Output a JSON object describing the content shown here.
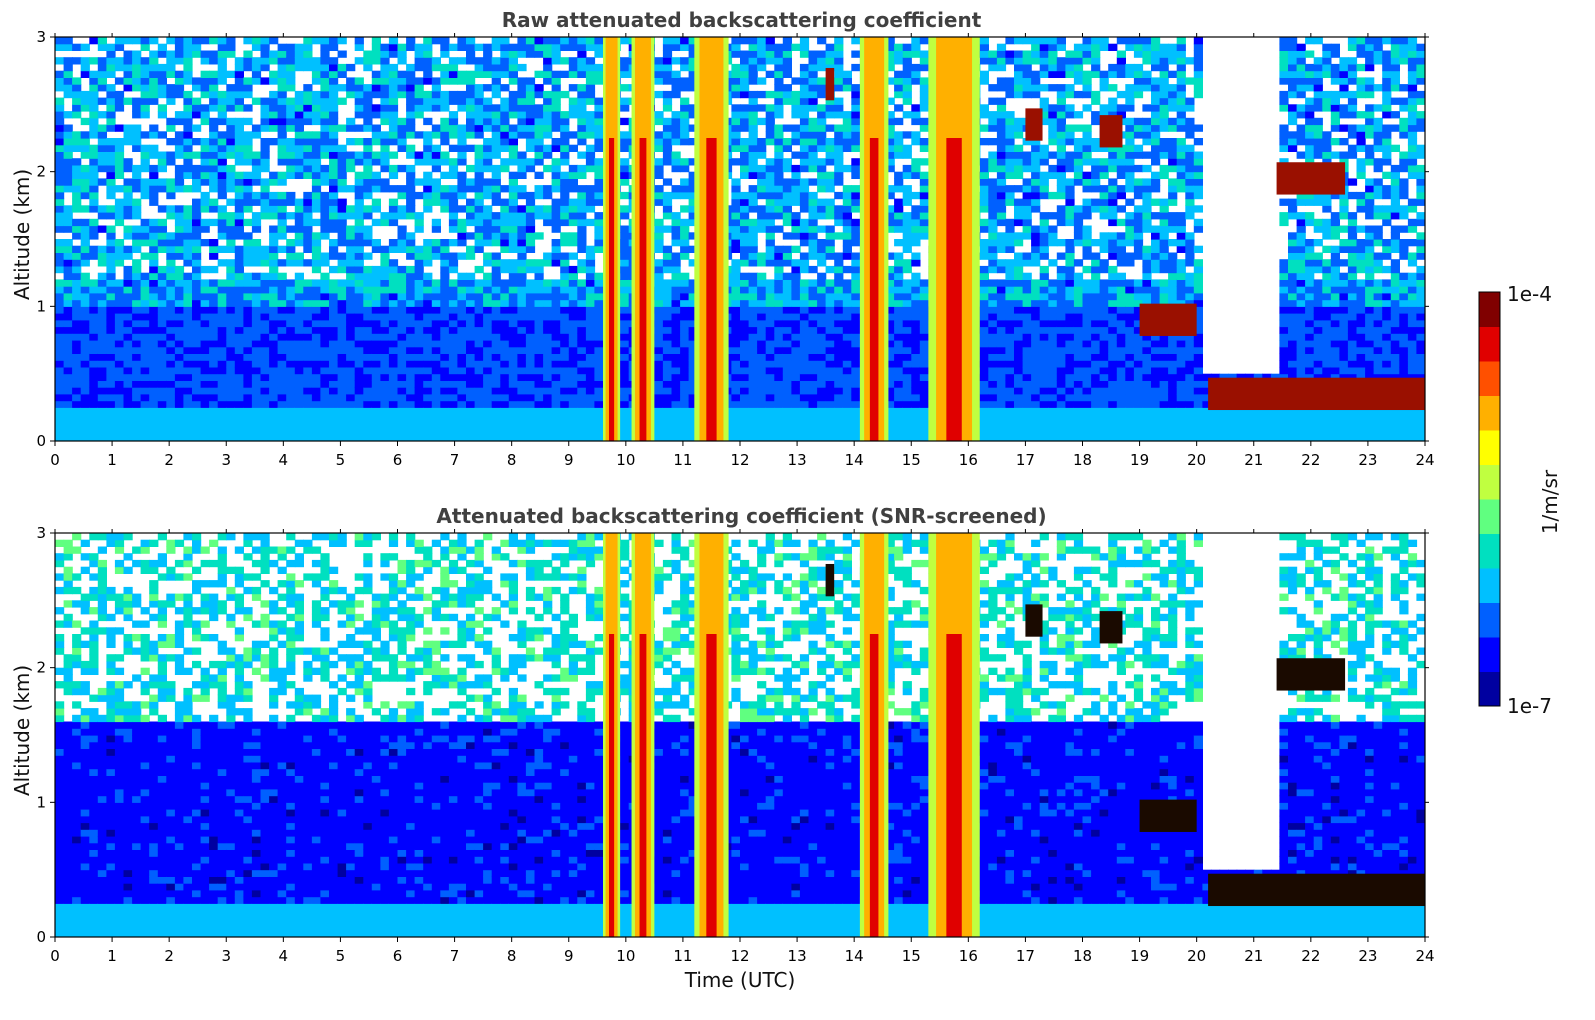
{
  "figure": {
    "colorbar": {
      "label": "1/m/sr",
      "max_label": "1e-4",
      "min_label": "1e-7",
      "colormap": [
        "#0000a0",
        "#0000ff",
        "#0060ff",
        "#00c0ff",
        "#00e0c0",
        "#60ff80",
        "#c0ff40",
        "#ffff00",
        "#ffb000",
        "#ff5000",
        "#e00000",
        "#800000"
      ]
    },
    "shared_xlabel": "Time (UTC)"
  },
  "chart_data": [
    {
      "type": "heatmap",
      "title": "Raw attenuated backscattering coefficient",
      "xlabel": "",
      "ylabel": "Altitude (km)",
      "xlim": [
        0,
        24
      ],
      "ylim": [
        0,
        3
      ],
      "xticks": [
        "0",
        "1",
        "2",
        "3",
        "4",
        "5",
        "6",
        "7",
        "8",
        "9",
        "10",
        "11",
        "12",
        "13",
        "14",
        "15",
        "16",
        "17",
        "18",
        "19",
        "20",
        "21",
        "22",
        "23",
        "24"
      ],
      "yticks": [
        "0",
        "1",
        "2",
        "3"
      ],
      "value_range": [
        "1e-7",
        "1e-4"
      ],
      "features": [
        {
          "name": "boundary layer",
          "t_start": 0,
          "t_end": 24,
          "alt_top_km": 0.2
        },
        {
          "name": "precipitation",
          "t_start": 9.6,
          "t_end": 9.9
        },
        {
          "name": "precipitation",
          "t_start": 10.1,
          "t_end": 10.5
        },
        {
          "name": "precipitation",
          "t_start": 11.2,
          "t_end": 11.8
        },
        {
          "name": "precipitation",
          "t_start": 14.1,
          "t_end": 14.6
        },
        {
          "name": "precipitation",
          "t_start": 15.3,
          "t_end": 16.2
        },
        {
          "name": "cloud",
          "t_start": 13.5,
          "t_end": 13.65,
          "alt_km": 2.65
        },
        {
          "name": "cloud",
          "t_start": 17.0,
          "t_end": 17.3,
          "alt_km": 2.35
        },
        {
          "name": "cloud",
          "t_start": 18.3,
          "t_end": 18.7,
          "alt_km": 2.3
        },
        {
          "name": "cloud",
          "t_start": 21.4,
          "t_end": 22.6,
          "alt_km": 1.95
        },
        {
          "name": "cloud",
          "t_start": 19.0,
          "t_end": 20.0,
          "alt_km": 0.9
        },
        {
          "name": "cloud",
          "t_start": 20.2,
          "t_end": 24.0,
          "alt_km": 0.35
        }
      ]
    },
    {
      "type": "heatmap",
      "title": "Attenuated backscattering coefficient (SNR-screened)",
      "xlabel": "Time (UTC)",
      "ylabel": "Altitude (km)",
      "xlim": [
        0,
        24
      ],
      "ylim": [
        0,
        3
      ],
      "xticks": [
        "0",
        "1",
        "2",
        "3",
        "4",
        "5",
        "6",
        "7",
        "8",
        "9",
        "10",
        "11",
        "12",
        "13",
        "14",
        "15",
        "16",
        "17",
        "18",
        "19",
        "20",
        "21",
        "22",
        "23",
        "24"
      ],
      "yticks": [
        "0",
        "1",
        "2",
        "3"
      ],
      "value_range": [
        "1e-7",
        "1e-4"
      ],
      "features": [
        {
          "name": "boundary layer",
          "t_start": 0,
          "t_end": 24,
          "alt_top_km": 0.2
        },
        {
          "name": "precipitation",
          "t_start": 9.6,
          "t_end": 9.9
        },
        {
          "name": "precipitation",
          "t_start": 10.1,
          "t_end": 10.5
        },
        {
          "name": "precipitation",
          "t_start": 11.2,
          "t_end": 11.8
        },
        {
          "name": "precipitation",
          "t_start": 14.1,
          "t_end": 14.6
        },
        {
          "name": "precipitation",
          "t_start": 15.3,
          "t_end": 16.2
        },
        {
          "name": "cloud",
          "t_start": 13.5,
          "t_end": 13.65,
          "alt_km": 2.65
        },
        {
          "name": "cloud",
          "t_start": 17.0,
          "t_end": 17.3,
          "alt_km": 2.35
        },
        {
          "name": "cloud",
          "t_start": 18.3,
          "t_end": 18.7,
          "alt_km": 2.3
        },
        {
          "name": "cloud",
          "t_start": 21.4,
          "t_end": 22.6,
          "alt_km": 1.95
        },
        {
          "name": "cloud",
          "t_start": 19.0,
          "t_end": 20.0,
          "alt_km": 0.9
        },
        {
          "name": "cloud",
          "t_start": 20.2,
          "t_end": 24.0,
          "alt_km": 0.35
        }
      ]
    }
  ]
}
